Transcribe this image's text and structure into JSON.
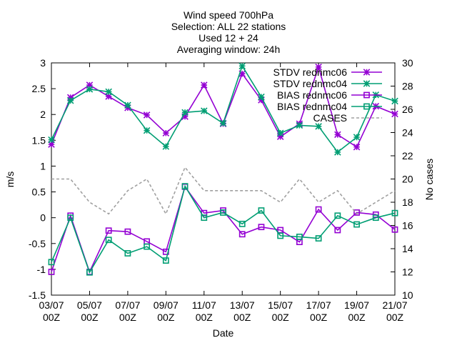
{
  "chart_data": {
    "type": "line",
    "title_lines": [
      "Wind speed 700hPa",
      "Selection: ALL      22 stations",
      "Used 12 + 24",
      "Averaging window: 24h"
    ],
    "xlabel": "Date",
    "ylabel": "m/s",
    "y2label": "No cases",
    "ylim": [
      -1.5,
      3
    ],
    "y2lim": [
      10,
      30
    ],
    "yticks": [
      -1.5,
      -1,
      -0.5,
      0,
      0.5,
      1,
      1.5,
      2,
      2.5,
      3
    ],
    "ytick_labels": [
      "-1.5",
      "-1",
      "-0.5",
      "0",
      "0.5",
      "1",
      "1.5",
      "2",
      "2.5",
      "3"
    ],
    "y2ticks": [
      10,
      12,
      14,
      16,
      18,
      20,
      22,
      24,
      26,
      28,
      30
    ],
    "y2tick_labels": [
      "10",
      "12",
      "14",
      "16",
      "18",
      "20",
      "22",
      "24",
      "26",
      "28",
      "30"
    ],
    "xlim": [
      0,
      18
    ],
    "xticks": [
      0,
      2,
      4,
      6,
      8,
      10,
      12,
      14,
      16,
      18
    ],
    "xtick_labels": [
      [
        "03/07",
        "00Z"
      ],
      [
        "05/07",
        "00Z"
      ],
      [
        "07/07",
        "00Z"
      ],
      [
        "09/07",
        "00Z"
      ],
      [
        "11/07",
        "00Z"
      ],
      [
        "13/07",
        "00Z"
      ],
      [
        "15/07",
        "00Z"
      ],
      [
        "17/07",
        "00Z"
      ],
      [
        "19/07",
        "00Z"
      ],
      [
        "21/07",
        "00Z"
      ]
    ],
    "x": [
      0,
      1,
      2,
      3,
      4,
      5,
      6,
      7,
      8,
      9,
      10,
      11,
      12,
      13,
      14,
      15,
      16,
      17,
      18
    ],
    "grid": false,
    "legend_position": "top-right",
    "series": [
      {
        "name": "STDV rednmc06",
        "axis": "y",
        "marker": "star",
        "dash": "solid",
        "color": "#9400d3",
        "values": [
          1.42,
          2.33,
          2.57,
          2.35,
          2.13,
          1.99,
          1.64,
          1.96,
          2.57,
          1.82,
          2.79,
          2.28,
          1.57,
          1.82,
          2.92,
          1.61,
          1.37,
          2.16,
          2.01
        ]
      },
      {
        "name": "STDV rednmc04",
        "axis": "y",
        "marker": "star",
        "dash": "solid",
        "color": "#009e73",
        "values": [
          1.51,
          2.27,
          2.49,
          2.44,
          2.18,
          1.69,
          1.38,
          2.04,
          2.07,
          1.83,
          2.94,
          2.34,
          1.64,
          1.79,
          1.77,
          1.27,
          1.56,
          2.38,
          2.26
        ]
      },
      {
        "name": "BIAS rednmc06",
        "axis": "y",
        "marker": "square",
        "dash": "solid",
        "color": "#9400d3",
        "values": [
          -1.05,
          0.04,
          -1.05,
          -0.25,
          -0.27,
          -0.46,
          -0.66,
          0.6,
          0.09,
          0.14,
          -0.32,
          -0.18,
          -0.24,
          -0.47,
          0.16,
          -0.24,
          0.1,
          0.06,
          -0.23
        ]
      },
      {
        "name": "BIAS rednmc04",
        "axis": "y",
        "marker": "square",
        "dash": "solid",
        "color": "#009e73",
        "values": [
          -0.86,
          0.0,
          -1.06,
          -0.43,
          -0.69,
          -0.56,
          -0.83,
          0.61,
          0.0,
          0.1,
          -0.12,
          0.14,
          -0.35,
          -0.37,
          -0.4,
          0.04,
          -0.13,
          0.0,
          0.09
        ]
      },
      {
        "name": "CASES",
        "axis": "y2",
        "marker": "none",
        "dash": "dashed",
        "color": "#a0a0a0",
        "values": [
          20,
          20,
          18,
          17,
          19,
          20,
          17,
          21,
          19,
          19,
          19,
          19,
          18,
          20,
          18,
          19,
          17,
          18,
          19
        ]
      }
    ]
  }
}
